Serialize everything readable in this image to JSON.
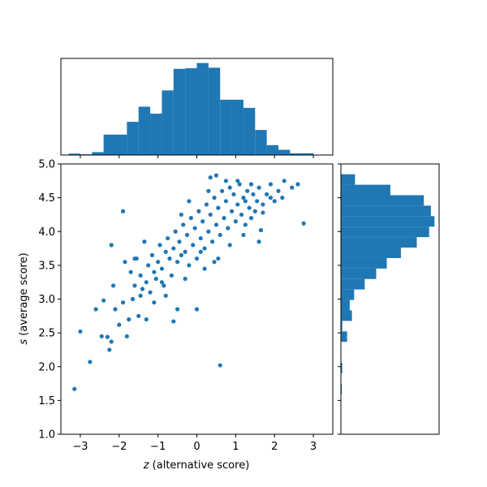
{
  "chart_data": [
    {
      "type": "scatter",
      "panel": "main",
      "xlabel_var": "z",
      "xlabel_text": " (alternative score)",
      "ylabel_var": "s",
      "ylabel_text": " (average score)",
      "xlim": [
        -3.5,
        3.5
      ],
      "ylim": [
        1.0,
        5.0
      ],
      "xticks": [
        -3,
        -2,
        -1,
        0,
        1,
        2,
        3
      ],
      "xtick_labels": [
        "−3",
        "−2",
        "−1",
        "0",
        "1",
        "2",
        "3"
      ],
      "yticks": [
        1.0,
        1.5,
        2.0,
        2.5,
        3.0,
        3.5,
        4.0,
        4.5,
        5.0
      ],
      "ytick_labels": [
        "1.0",
        "1.5",
        "2.0",
        "2.5",
        "3.0",
        "3.5",
        "4.0",
        "4.5",
        "5.0"
      ],
      "color": "#1f77b4",
      "points": [
        [
          -3.15,
          1.67
        ],
        [
          -3.0,
          2.52
        ],
        [
          -2.75,
          2.07
        ],
        [
          -2.6,
          2.85
        ],
        [
          -2.45,
          2.45
        ],
        [
          -2.3,
          2.44
        ],
        [
          -2.25,
          2.25
        ],
        [
          -2.2,
          2.37
        ],
        [
          -2.4,
          2.98
        ],
        [
          -2.2,
          3.8
        ],
        [
          -2.15,
          3.2
        ],
        [
          -2.1,
          2.85
        ],
        [
          -2.0,
          2.62
        ],
        [
          -1.9,
          2.95
        ],
        [
          -1.85,
          3.55
        ],
        [
          -1.8,
          2.45
        ],
        [
          -1.75,
          2.7
        ],
        [
          -1.7,
          3.4
        ],
        [
          -1.65,
          3.0
        ],
        [
          -1.6,
          3.2
        ],
        [
          -1.55,
          3.6
        ],
        [
          -1.5,
          2.75
        ],
        [
          -1.45,
          3.35
        ],
        [
          -1.4,
          3.15
        ],
        [
          -1.35,
          3.85
        ],
        [
          -1.3,
          3.25
        ],
        [
          -1.25,
          3.5
        ],
        [
          -1.2,
          3.1
        ],
        [
          -1.15,
          3.65
        ],
        [
          -1.1,
          3.4
        ],
        [
          -1.05,
          3.3
        ],
        [
          -1.0,
          3.55
        ],
        [
          -0.95,
          3.8
        ],
        [
          -0.9,
          3.45
        ],
        [
          -0.85,
          3.2
        ],
        [
          -0.8,
          3.7
        ],
        [
          -0.75,
          3.9
        ],
        [
          -0.7,
          3.6
        ],
        [
          -0.65,
          3.35
        ],
        [
          -0.6,
          3.75
        ],
        [
          -0.55,
          4.0
        ],
        [
          -0.5,
          3.55
        ],
        [
          -0.45,
          3.85
        ],
        [
          -0.4,
          3.65
        ],
        [
          -0.35,
          4.1
        ],
        [
          -0.3,
          3.7
        ],
        [
          -0.25,
          3.95
        ],
        [
          -0.2,
          3.5
        ],
        [
          -0.15,
          4.2
        ],
        [
          -0.1,
          3.8
        ],
        [
          -0.05,
          4.05
        ],
        [
          0.0,
          3.6
        ],
        [
          0.05,
          4.3
        ],
        [
          0.1,
          3.9
        ],
        [
          0.15,
          4.15
        ],
        [
          0.2,
          3.75
        ],
        [
          0.25,
          4.4
        ],
        [
          0.3,
          4.0
        ],
        [
          0.35,
          4.25
        ],
        [
          0.4,
          3.85
        ],
        [
          0.45,
          4.5
        ],
        [
          0.5,
          4.1
        ],
        [
          0.55,
          4.35
        ],
        [
          0.6,
          3.95
        ],
        [
          0.65,
          4.6
        ],
        [
          0.7,
          4.2
        ],
        [
          0.75,
          4.45
        ],
        [
          0.8,
          4.05
        ],
        [
          0.85,
          4.65
        ],
        [
          0.9,
          4.3
        ],
        [
          0.95,
          4.55
        ],
        [
          1.0,
          4.15
        ],
        [
          1.05,
          4.4
        ],
        [
          1.1,
          4.7
        ],
        [
          1.15,
          4.25
        ],
        [
          1.2,
          4.5
        ],
        [
          1.25,
          4.1
        ],
        [
          1.3,
          4.6
        ],
        [
          1.35,
          4.35
        ],
        [
          1.4,
          4.2
        ],
        [
          1.45,
          4.55
        ],
        [
          1.5,
          4.3
        ],
        [
          1.55,
          4.45
        ],
        [
          1.6,
          4.65
        ],
        [
          1.7,
          4.4
        ],
        [
          1.8,
          4.55
        ],
        [
          1.9,
          4.7
        ],
        [
          2.0,
          4.45
        ],
        [
          2.1,
          4.6
        ],
        [
          2.25,
          4.75
        ],
        [
          2.45,
          4.65
        ],
        [
          2.6,
          4.7
        ],
        [
          2.75,
          4.12
        ],
        [
          0.6,
          2.02
        ],
        [
          -0.5,
          2.85
        ],
        [
          -1.1,
          2.95
        ],
        [
          -1.9,
          4.3
        ],
        [
          -0.6,
          2.67
        ],
        [
          0.0,
          2.85
        ],
        [
          0.5,
          4.83
        ],
        [
          0.35,
          4.8
        ],
        [
          1.65,
          4.02
        ],
        [
          1.6,
          3.85
        ],
        [
          1.7,
          4.28
        ],
        [
          0.2,
          3.45
        ],
        [
          -0.3,
          3.3
        ],
        [
          -0.8,
          3.05
        ],
        [
          -1.3,
          2.7
        ],
        [
          0.55,
          3.6
        ],
        [
          0.1,
          3.7
        ],
        [
          -0.4,
          4.25
        ],
        [
          -0.9,
          3.25
        ],
        [
          -1.45,
          3.05
        ],
        [
          -1.6,
          3.6
        ],
        [
          1.2,
          3.95
        ],
        [
          0.85,
          3.8
        ],
        [
          0.45,
          3.55
        ],
        [
          -0.2,
          4.45
        ],
        [
          0.3,
          4.6
        ],
        [
          1.05,
          4.75
        ],
        [
          1.4,
          4.7
        ],
        [
          1.9,
          4.5
        ],
        [
          2.2,
          4.5
        ],
        [
          1.25,
          4.45
        ],
        [
          0.75,
          4.75
        ]
      ]
    },
    {
      "type": "histogram",
      "panel": "top",
      "xlim": [
        -3.5,
        3.5
      ],
      "bin_width": 0.3,
      "bins": [
        [
          -3.15,
          0.012
        ],
        [
          -2.85,
          0.006
        ],
        [
          -2.55,
          0.025
        ],
        [
          -2.25,
          0.175
        ],
        [
          -1.95,
          0.175
        ],
        [
          -1.65,
          0.285
        ],
        [
          -1.35,
          0.415
        ],
        [
          -1.05,
          0.355
        ],
        [
          -0.75,
          0.555
        ],
        [
          -0.45,
          0.74
        ],
        [
          -0.15,
          0.745
        ],
        [
          0.15,
          0.79
        ],
        [
          0.45,
          0.75
        ],
        [
          0.75,
          0.475
        ],
        [
          1.05,
          0.475
        ],
        [
          1.35,
          0.405
        ],
        [
          1.65,
          0.215
        ],
        [
          1.95,
          0.085
        ],
        [
          2.25,
          0.045
        ],
        [
          2.55,
          0.015
        ],
        [
          2.85,
          0.015
        ]
      ]
    },
    {
      "type": "histogram",
      "panel": "right",
      "orientation": "horizontal",
      "ylim": [
        1.0,
        5.0
      ],
      "bin_width": 0.155,
      "bins": [
        [
          1.67,
          0.01
        ],
        [
          1.825,
          0.0
        ],
        [
          1.98,
          0.015
        ],
        [
          2.135,
          0.0
        ],
        [
          2.29,
          0.0
        ],
        [
          2.445,
          0.07
        ],
        [
          2.6,
          0.015
        ],
        [
          2.755,
          0.125
        ],
        [
          2.91,
          0.1
        ],
        [
          3.065,
          0.15
        ],
        [
          3.22,
          0.27
        ],
        [
          3.375,
          0.4
        ],
        [
          3.53,
          0.52
        ],
        [
          3.685,
          0.68
        ],
        [
          3.84,
          0.86
        ],
        [
          3.995,
          1.0
        ],
        [
          4.15,
          1.06
        ],
        [
          4.305,
          1.02
        ],
        [
          4.46,
          0.94
        ],
        [
          4.615,
          0.56
        ],
        [
          4.77,
          0.16
        ]
      ]
    }
  ]
}
